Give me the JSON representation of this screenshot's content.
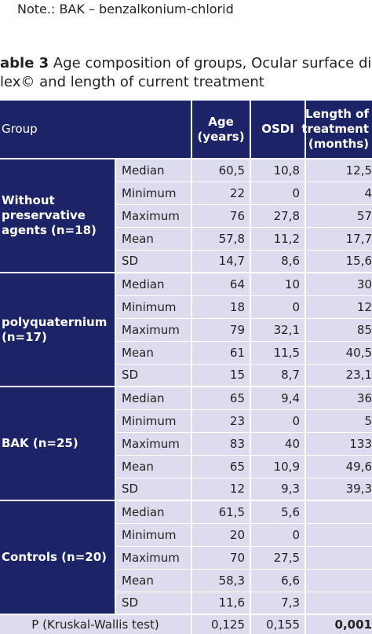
{
  "note": "Note.: BAK – benzalkonium-chlorid",
  "title": {
    "label": "able 3",
    "text": " Age composition of groups, Ocular surface disease in",
    "line2": "lex© and length of current treatment"
  },
  "table": {
    "header": [
      "Group",
      "Age (years)",
      "OSDI",
      "Length of treatment (months)"
    ],
    "groups": [
      {
        "name": "Without preservative agents (n=18)",
        "rows": [
          [
            "Median",
            "60,5",
            "10,8",
            "12,5"
          ],
          [
            "Minimum",
            "22",
            "0",
            "4"
          ],
          [
            "Maximum",
            "76",
            "27,8",
            "57"
          ],
          [
            "Mean",
            "57,8",
            "11,2",
            "17,7"
          ],
          [
            "SD",
            "14,7",
            "8,6",
            "15,6"
          ]
        ]
      },
      {
        "name": "polyquaternium (n=17)",
        "rows": [
          [
            "Median",
            "64",
            "10",
            "30"
          ],
          [
            "Minimum",
            "18",
            "0",
            "12"
          ],
          [
            "Maximum",
            "79",
            "32,1",
            "85"
          ],
          [
            "Mean",
            "61",
            "11,5",
            "40,5"
          ],
          [
            "SD",
            "15",
            "8,7",
            "23,1"
          ]
        ]
      },
      {
        "name": "BAK  (n=25)",
        "rows": [
          [
            "Median",
            "65",
            "9,4",
            "36"
          ],
          [
            "Minimum",
            "23",
            "0",
            "5"
          ],
          [
            "Maximum",
            "83",
            "40",
            "133"
          ],
          [
            "Mean",
            "65",
            "10,9",
            "49,6"
          ],
          [
            "SD",
            "12",
            "9,3",
            "39,3"
          ]
        ]
      },
      {
        "name": "Controls  (n=20)",
        "rows": [
          [
            "Median",
            "61,5",
            "5,6",
            null
          ],
          [
            "Minimum",
            "20",
            "0",
            null
          ],
          [
            "Maximum",
            "70",
            "27,5",
            null
          ],
          [
            "Mean",
            "58,3",
            "6,6",
            null
          ],
          [
            "SD",
            "11,6",
            "7,3",
            null
          ]
        ]
      }
    ],
    "footer": [
      "P (Kruskal-Wallis test)",
      "0,125",
      "0,155",
      "0,001"
    ]
  }
}
